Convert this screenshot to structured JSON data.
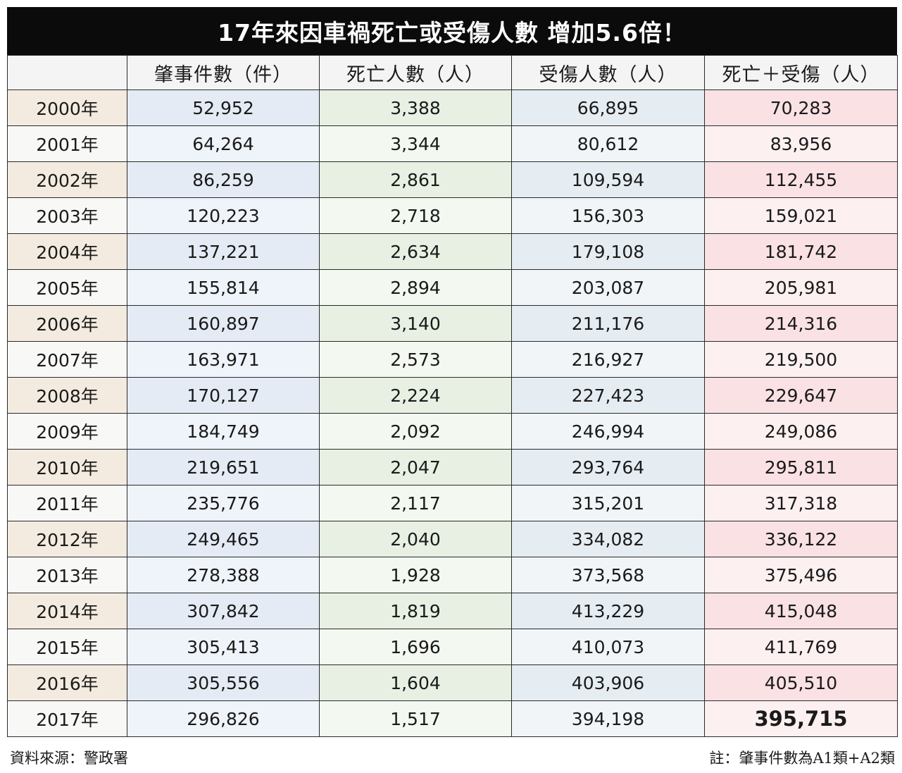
{
  "title": "17年來因車禍死亡或受傷人數 增加5.6倍！",
  "chart_data": {
    "type": "table",
    "title": "17年來因車禍死亡或受傷人數 增加5.6倍！",
    "columns": [
      "",
      "肇事件數（件）",
      "死亡人數（人）",
      "受傷人數（人）",
      "死亡＋受傷（人）"
    ],
    "rows": [
      [
        "2000年",
        "52,952",
        "3,388",
        "66,895",
        "70,283"
      ],
      [
        "2001年",
        "64,264",
        "3,344",
        "80,612",
        "83,956"
      ],
      [
        "2002年",
        "86,259",
        "2,861",
        "109,594",
        "112,455"
      ],
      [
        "2003年",
        "120,223",
        "2,718",
        "156,303",
        "159,021"
      ],
      [
        "2004年",
        "137,221",
        "2,634",
        "179,108",
        "181,742"
      ],
      [
        "2005年",
        "155,814",
        "2,894",
        "203,087",
        "205,981"
      ],
      [
        "2006年",
        "160,897",
        "3,140",
        "211,176",
        "214,316"
      ],
      [
        "2007年",
        "163,971",
        "2,573",
        "216,927",
        "219,500"
      ],
      [
        "2008年",
        "170,127",
        "2,224",
        "227,423",
        "229,647"
      ],
      [
        "2009年",
        "184,749",
        "2,092",
        "246,994",
        "249,086"
      ],
      [
        "2010年",
        "219,651",
        "2,047",
        "293,764",
        "295,811"
      ],
      [
        "2011年",
        "235,776",
        "2,117",
        "315,201",
        "317,318"
      ],
      [
        "2012年",
        "249,465",
        "2,040",
        "334,082",
        "336,122"
      ],
      [
        "2013年",
        "278,388",
        "1,928",
        "373,568",
        "375,496"
      ],
      [
        "2014年",
        "307,842",
        "1,819",
        "413,229",
        "415,048"
      ],
      [
        "2015年",
        "305,413",
        "1,696",
        "410,073",
        "411,769"
      ],
      [
        "2016年",
        "305,556",
        "1,604",
        "403,906",
        "405,510"
      ],
      [
        "2017年",
        "296,826",
        "1,517",
        "394,198",
        "395,715"
      ]
    ]
  },
  "footer": {
    "source": "資料來源：警政署",
    "note": "註：肇事件數為A1類+A2類"
  }
}
